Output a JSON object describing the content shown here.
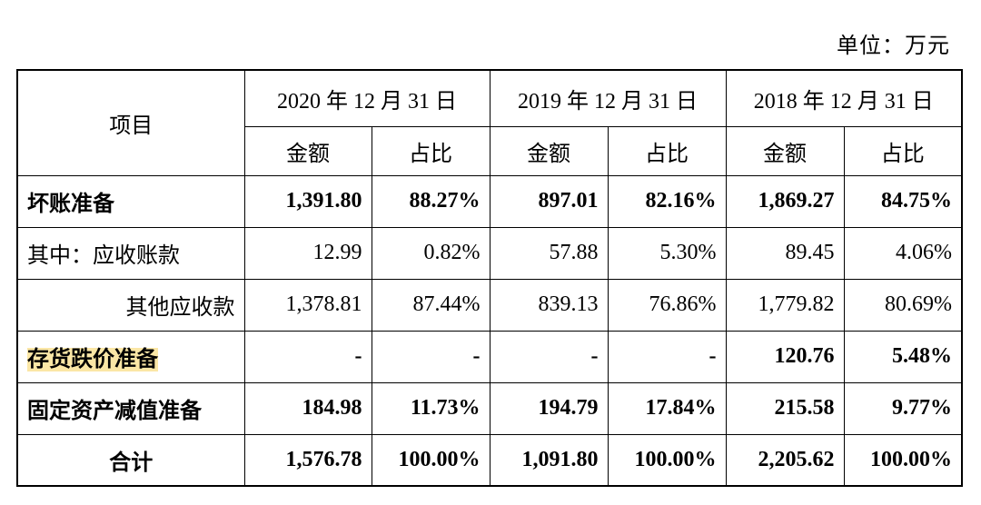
{
  "unit": "单位：万元",
  "top_fragment": "",
  "table": {
    "item_header": "项目",
    "years": [
      "2020 年 12 月 31 日",
      "2019 年 12 月 31 日",
      "2018 年 12 月 31 日"
    ],
    "sub_headers": [
      "金额",
      "占比",
      "金额",
      "占比",
      "金额",
      "占比"
    ],
    "rows": [
      {
        "label": "坏账准备",
        "values": [
          "1,391.80",
          "88.27%",
          "897.01",
          "82.16%",
          "1,869.27",
          "84.75%"
        ]
      },
      {
        "label": "其中：应收账款",
        "values": [
          "12.99",
          "0.82%",
          "57.88",
          "5.30%",
          "89.45",
          "4.06%"
        ]
      },
      {
        "label": "其他应收款",
        "values": [
          "1,378.81",
          "87.44%",
          "839.13",
          "76.86%",
          "1,779.82",
          "80.69%"
        ]
      },
      {
        "label": "存货跌价准备",
        "values": [
          "-",
          "-",
          "-",
          "-",
          "120.76",
          "5.48%"
        ]
      },
      {
        "label": "固定资产减值准备",
        "values": [
          "184.98",
          "11.73%",
          "194.79",
          "17.84%",
          "215.58",
          "9.77%"
        ]
      },
      {
        "label": "合计",
        "values": [
          "1,576.78",
          "100.00%",
          "1,091.80",
          "100.00%",
          "2,205.62",
          "100.00%"
        ]
      }
    ]
  },
  "colors": {
    "highlight": "#fbe7a6",
    "border": "#000000"
  }
}
